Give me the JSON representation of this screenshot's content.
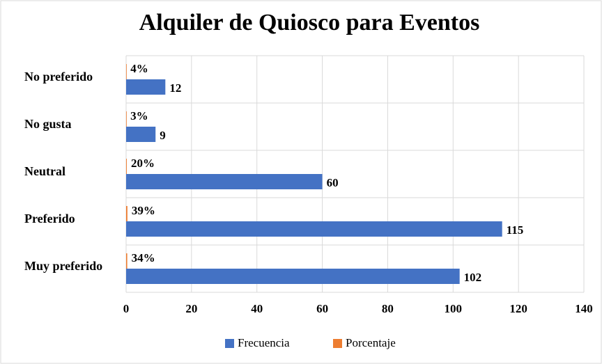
{
  "chart_data": {
    "type": "bar",
    "orientation": "horizontal",
    "title": "Alquiler de Quiosco para Eventos",
    "categories": [
      "No preferido",
      "No gusta",
      "Neutral",
      "Preferido",
      "Muy preferido"
    ],
    "series": [
      {
        "name": "Frecuencia",
        "color": "#4472c4",
        "values": [
          12,
          9,
          60,
          115,
          102
        ]
      },
      {
        "name": "Porcentaje",
        "color": "#ed7d31",
        "values": [
          0.04,
          0.03,
          0.2,
          0.39,
          0.34
        ],
        "value_labels": [
          "4%",
          "3%",
          "20%",
          "39%",
          "34%"
        ]
      }
    ],
    "xlim": [
      0,
      140
    ],
    "xticks": [
      0,
      20,
      40,
      60,
      80,
      100,
      120,
      140
    ],
    "grid": true,
    "legend": "bottom"
  }
}
